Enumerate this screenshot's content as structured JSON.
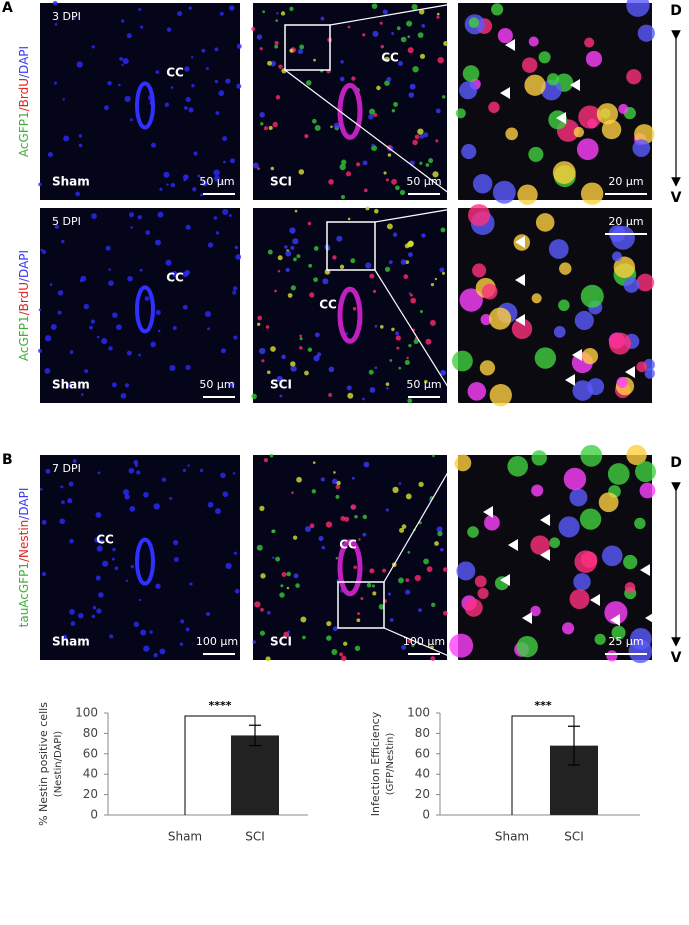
{
  "panel_labels": [
    "A",
    "B"
  ],
  "rows": [
    {
      "stain": [
        {
          "text": "AcGFP1",
          "color": "#3fae3a"
        },
        {
          "text": "/",
          "color": "#e02222"
        },
        {
          "text": "BrdU",
          "color": "#e02222"
        },
        {
          "text": "/",
          "color": "#3a3aff"
        },
        {
          "text": "DAPI",
          "color": "#3a3aff"
        }
      ],
      "sham": {
        "dpi": "3 DPI",
        "cc": "CC",
        "group": "Sham",
        "scale": "50 µm"
      },
      "sci": {
        "cc": "CC",
        "group": "SCI",
        "scale": "50 µm"
      },
      "zoom": {
        "scale": "20 µm"
      }
    },
    {
      "stain": [
        {
          "text": "AcGFP1",
          "color": "#3fae3a"
        },
        {
          "text": "/",
          "color": "#e02222"
        },
        {
          "text": "BrdU",
          "color": "#e02222"
        },
        {
          "text": "/",
          "color": "#3a3aff"
        },
        {
          "text": "DAPI",
          "color": "#3a3aff"
        }
      ],
      "sham": {
        "dpi": "5 DPI",
        "cc": "CC",
        "group": "Sham",
        "scale": "50 µm"
      },
      "sci": {
        "cc": "CC",
        "group": "SCI",
        "scale": "50 µm"
      },
      "zoom": {
        "scale": "20 µm"
      }
    },
    {
      "stain": [
        {
          "text": "tauAcGFP1",
          "color": "#3fae3a"
        },
        {
          "text": "/",
          "color": "#e02222"
        },
        {
          "text": "Nestin",
          "color": "#e02222"
        },
        {
          "text": "/",
          "color": "#3a3aff"
        },
        {
          "text": "DAPI",
          "color": "#3a3aff"
        }
      ],
      "sham": {
        "dpi": "7 DPI",
        "cc": "CC",
        "group": "Sham",
        "scale": "100 µm"
      },
      "sci": {
        "cc": "CC",
        "group": "SCI",
        "scale": "100 µm"
      },
      "zoom": {
        "scale": "25 µm"
      }
    }
  ],
  "orientation_a": [
    "D",
    "V"
  ],
  "orientation_b": [
    "D",
    "V"
  ],
  "chart_data": [
    {
      "type": "bar",
      "categories": [
        "Sham",
        "SCI"
      ],
      "values": [
        0,
        78
      ],
      "errors": [
        null,
        10
      ],
      "color": "#222222",
      "ylabel": [
        "% Nestin positive cells",
        "(Nestin/DAPI)"
      ],
      "ylim": [
        0,
        100
      ],
      "yticks": [
        0,
        20,
        40,
        60,
        80,
        100
      ],
      "significance": "****"
    },
    {
      "type": "bar",
      "categories": [
        "Sham",
        "SCI"
      ],
      "values": [
        0,
        68
      ],
      "errors": [
        null,
        19
      ],
      "color": "#222222",
      "ylabel": [
        "Infection Efficiency",
        "(GFP/Nestin)"
      ],
      "ylim": [
        0,
        100
      ],
      "yticks": [
        0,
        20,
        40,
        60,
        80,
        100
      ],
      "significance": "***"
    }
  ]
}
